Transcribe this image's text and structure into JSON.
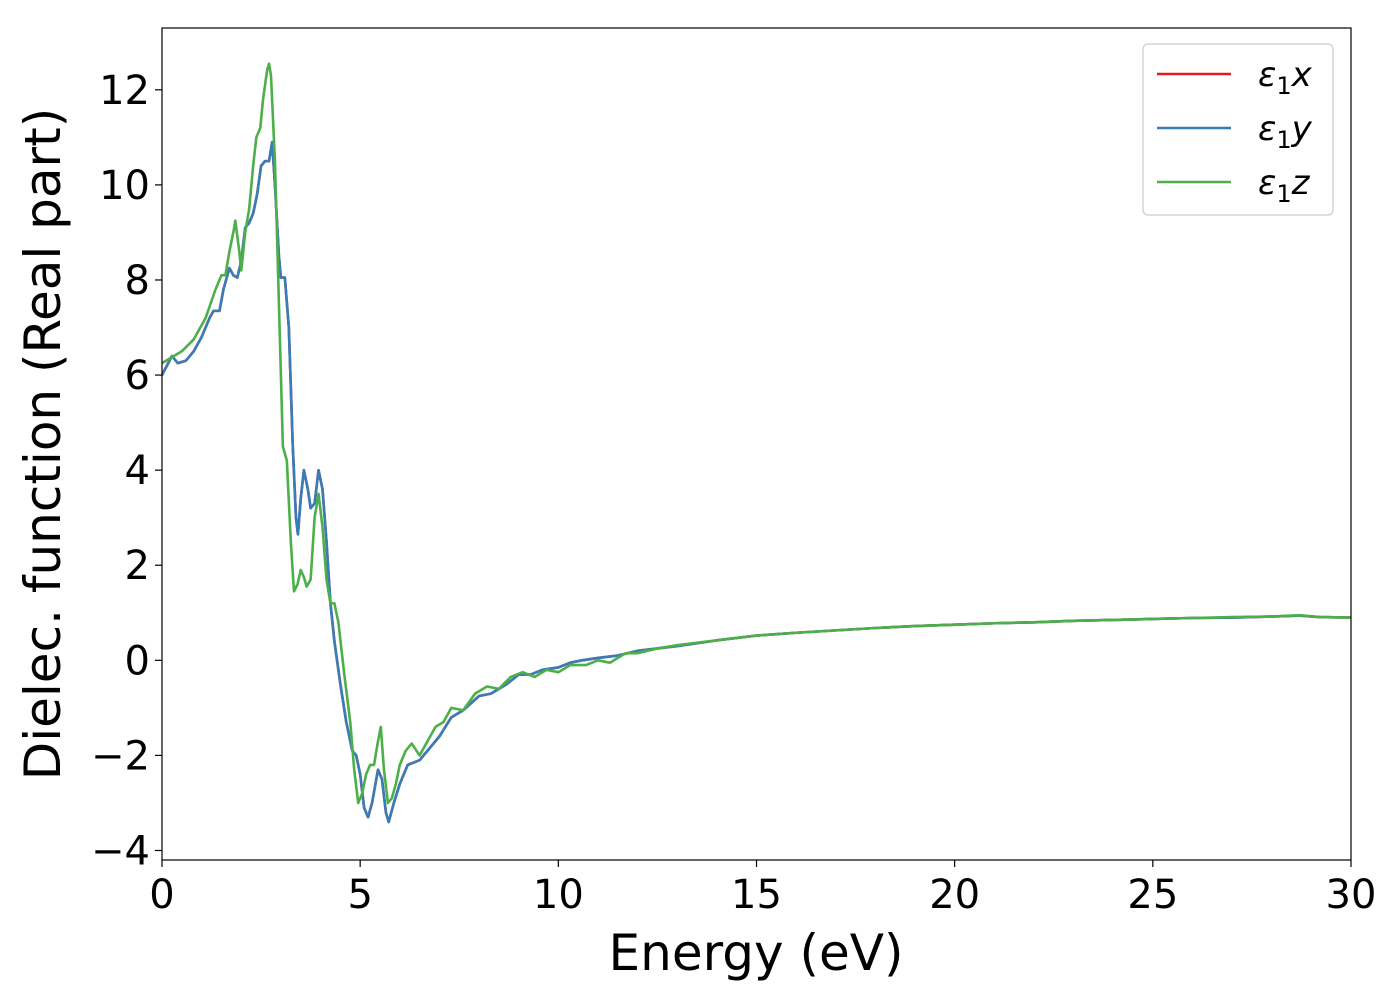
{
  "chart_data": {
    "type": "line",
    "title": "",
    "xlabel": "Energy (eV)",
    "ylabel": "Dielec. function (Real part)",
    "xlim": [
      0,
      30
    ],
    "ylim": [
      -4.2,
      13.3
    ],
    "xticks": [
      0,
      5,
      10,
      15,
      20,
      25,
      30
    ],
    "yticks": [
      -4,
      -2,
      0,
      2,
      4,
      6,
      8,
      10,
      12
    ],
    "xtick_labels": [
      "0",
      "5",
      "10",
      "15",
      "20",
      "25",
      "30"
    ],
    "ytick_labels": [
      "−4",
      "−2",
      "0",
      "2",
      "4",
      "6",
      "8",
      "10",
      "12"
    ],
    "grid": false,
    "legend_position": "top-right",
    "series": [
      {
        "name": "ε1x",
        "legend": {
          "base": "ε",
          "sub": "1",
          "var": "x"
        },
        "color": "#e41a1c",
        "points": [
          [
            0,
            6.0
          ],
          [
            0.25,
            6.4
          ],
          [
            0.4,
            6.25
          ],
          [
            0.6,
            6.3
          ],
          [
            0.8,
            6.5
          ],
          [
            1.0,
            6.8
          ],
          [
            1.2,
            7.2
          ],
          [
            1.3,
            7.35
          ],
          [
            1.45,
            7.35
          ],
          [
            1.55,
            7.8
          ],
          [
            1.7,
            8.25
          ],
          [
            1.8,
            8.1
          ],
          [
            1.9,
            8.05
          ],
          [
            2.0,
            8.4
          ],
          [
            2.1,
            9.1
          ],
          [
            2.2,
            9.2
          ],
          [
            2.3,
            9.4
          ],
          [
            2.4,
            9.8
          ],
          [
            2.5,
            10.4
          ],
          [
            2.6,
            10.5
          ],
          [
            2.7,
            10.5
          ],
          [
            2.78,
            10.9
          ],
          [
            2.85,
            10.0
          ],
          [
            2.95,
            8.5
          ],
          [
            3.0,
            8.05
          ],
          [
            3.1,
            8.05
          ],
          [
            3.2,
            7.0
          ],
          [
            3.3,
            4.5
          ],
          [
            3.38,
            3.0
          ],
          [
            3.43,
            2.65
          ],
          [
            3.5,
            3.4
          ],
          [
            3.58,
            4.0
          ],
          [
            3.68,
            3.6
          ],
          [
            3.75,
            3.2
          ],
          [
            3.85,
            3.3
          ],
          [
            3.95,
            4.0
          ],
          [
            4.05,
            3.6
          ],
          [
            4.15,
            2.5
          ],
          [
            4.25,
            1.2
          ],
          [
            4.35,
            0.4
          ],
          [
            4.5,
            -0.5
          ],
          [
            4.65,
            -1.3
          ],
          [
            4.8,
            -1.9
          ],
          [
            4.9,
            -2.0
          ],
          [
            5.0,
            -2.4
          ],
          [
            5.1,
            -3.1
          ],
          [
            5.2,
            -3.3
          ],
          [
            5.3,
            -3.0
          ],
          [
            5.45,
            -2.3
          ],
          [
            5.55,
            -2.5
          ],
          [
            5.65,
            -3.2
          ],
          [
            5.72,
            -3.4
          ],
          [
            5.85,
            -3.0
          ],
          [
            6.0,
            -2.6
          ],
          [
            6.2,
            -2.2
          ],
          [
            6.5,
            -2.1
          ],
          [
            7.0,
            -1.6
          ],
          [
            7.3,
            -1.2
          ],
          [
            7.6,
            -1.05
          ],
          [
            8.0,
            -0.75
          ],
          [
            8.3,
            -0.7
          ],
          [
            8.7,
            -0.5
          ],
          [
            9.0,
            -0.3
          ],
          [
            9.3,
            -0.3
          ],
          [
            9.6,
            -0.2
          ],
          [
            10.0,
            -0.15
          ],
          [
            10.3,
            -0.05
          ],
          [
            10.6,
            0.0
          ],
          [
            11.0,
            0.05
          ],
          [
            11.5,
            0.1
          ],
          [
            12.0,
            0.2
          ],
          [
            13.0,
            0.3
          ],
          [
            14.0,
            0.42
          ],
          [
            15.0,
            0.52
          ],
          [
            16.0,
            0.58
          ],
          [
            17.0,
            0.63
          ],
          [
            18.0,
            0.68
          ],
          [
            19.0,
            0.72
          ],
          [
            20.0,
            0.75
          ],
          [
            21.0,
            0.78
          ],
          [
            22.0,
            0.8
          ],
          [
            23.0,
            0.83
          ],
          [
            24.0,
            0.85
          ],
          [
            25.0,
            0.87
          ],
          [
            26.0,
            0.89
          ],
          [
            27.0,
            0.9
          ],
          [
            28.0,
            0.92
          ],
          [
            28.7,
            0.94
          ],
          [
            29.2,
            0.91
          ],
          [
            30.0,
            0.9
          ]
        ]
      },
      {
        "name": "ε1y",
        "legend": {
          "base": "ε",
          "sub": "1",
          "var": "y"
        },
        "color": "#377eb8",
        "points": [
          [
            0,
            6.0
          ],
          [
            0.25,
            6.4
          ],
          [
            0.4,
            6.25
          ],
          [
            0.6,
            6.3
          ],
          [
            0.8,
            6.5
          ],
          [
            1.0,
            6.8
          ],
          [
            1.2,
            7.2
          ],
          [
            1.3,
            7.35
          ],
          [
            1.45,
            7.35
          ],
          [
            1.55,
            7.8
          ],
          [
            1.7,
            8.25
          ],
          [
            1.8,
            8.1
          ],
          [
            1.9,
            8.05
          ],
          [
            2.0,
            8.4
          ],
          [
            2.1,
            9.1
          ],
          [
            2.2,
            9.2
          ],
          [
            2.3,
            9.4
          ],
          [
            2.4,
            9.8
          ],
          [
            2.5,
            10.4
          ],
          [
            2.6,
            10.5
          ],
          [
            2.7,
            10.5
          ],
          [
            2.78,
            10.9
          ],
          [
            2.85,
            10.0
          ],
          [
            2.95,
            8.5
          ],
          [
            3.0,
            8.05
          ],
          [
            3.1,
            8.05
          ],
          [
            3.2,
            7.0
          ],
          [
            3.3,
            4.5
          ],
          [
            3.38,
            3.0
          ],
          [
            3.43,
            2.65
          ],
          [
            3.5,
            3.4
          ],
          [
            3.58,
            4.0
          ],
          [
            3.68,
            3.6
          ],
          [
            3.75,
            3.2
          ],
          [
            3.85,
            3.3
          ],
          [
            3.95,
            4.0
          ],
          [
            4.05,
            3.6
          ],
          [
            4.15,
            2.5
          ],
          [
            4.25,
            1.2
          ],
          [
            4.35,
            0.4
          ],
          [
            4.5,
            -0.5
          ],
          [
            4.65,
            -1.3
          ],
          [
            4.8,
            -1.9
          ],
          [
            4.9,
            -2.0
          ],
          [
            5.0,
            -2.4
          ],
          [
            5.1,
            -3.1
          ],
          [
            5.2,
            -3.3
          ],
          [
            5.3,
            -3.0
          ],
          [
            5.45,
            -2.3
          ],
          [
            5.55,
            -2.5
          ],
          [
            5.65,
            -3.2
          ],
          [
            5.72,
            -3.4
          ],
          [
            5.85,
            -3.0
          ],
          [
            6.0,
            -2.6
          ],
          [
            6.2,
            -2.2
          ],
          [
            6.5,
            -2.1
          ],
          [
            7.0,
            -1.6
          ],
          [
            7.3,
            -1.2
          ],
          [
            7.6,
            -1.05
          ],
          [
            8.0,
            -0.75
          ],
          [
            8.3,
            -0.7
          ],
          [
            8.7,
            -0.5
          ],
          [
            9.0,
            -0.3
          ],
          [
            9.3,
            -0.3
          ],
          [
            9.6,
            -0.2
          ],
          [
            10.0,
            -0.15
          ],
          [
            10.3,
            -0.05
          ],
          [
            10.6,
            0.0
          ],
          [
            11.0,
            0.05
          ],
          [
            11.5,
            0.1
          ],
          [
            12.0,
            0.2
          ],
          [
            13.0,
            0.3
          ],
          [
            14.0,
            0.42
          ],
          [
            15.0,
            0.52
          ],
          [
            16.0,
            0.58
          ],
          [
            17.0,
            0.63
          ],
          [
            18.0,
            0.68
          ],
          [
            19.0,
            0.72
          ],
          [
            20.0,
            0.75
          ],
          [
            21.0,
            0.78
          ],
          [
            22.0,
            0.8
          ],
          [
            23.0,
            0.83
          ],
          [
            24.0,
            0.85
          ],
          [
            25.0,
            0.87
          ],
          [
            26.0,
            0.89
          ],
          [
            27.0,
            0.9
          ],
          [
            28.0,
            0.92
          ],
          [
            28.7,
            0.94
          ],
          [
            29.2,
            0.91
          ],
          [
            30.0,
            0.9
          ]
        ]
      },
      {
        "name": "ε1z",
        "legend": {
          "base": "ε",
          "sub": "1",
          "var": "z"
        },
        "color": "#4daf4a",
        "points": [
          [
            0,
            6.25
          ],
          [
            0.2,
            6.35
          ],
          [
            0.5,
            6.5
          ],
          [
            0.8,
            6.75
          ],
          [
            1.1,
            7.2
          ],
          [
            1.35,
            7.8
          ],
          [
            1.5,
            8.1
          ],
          [
            1.6,
            8.1
          ],
          [
            1.7,
            8.6
          ],
          [
            1.8,
            9.0
          ],
          [
            1.85,
            9.25
          ],
          [
            1.95,
            8.6
          ],
          [
            2.0,
            8.2
          ],
          [
            2.1,
            9.0
          ],
          [
            2.2,
            9.5
          ],
          [
            2.3,
            10.4
          ],
          [
            2.38,
            11.0
          ],
          [
            2.48,
            11.2
          ],
          [
            2.55,
            11.8
          ],
          [
            2.65,
            12.4
          ],
          [
            2.7,
            12.55
          ],
          [
            2.75,
            12.3
          ],
          [
            2.85,
            10.5
          ],
          [
            2.95,
            7.5
          ],
          [
            3.05,
            4.5
          ],
          [
            3.15,
            4.2
          ],
          [
            3.25,
            2.5
          ],
          [
            3.33,
            1.45
          ],
          [
            3.42,
            1.6
          ],
          [
            3.5,
            1.9
          ],
          [
            3.58,
            1.75
          ],
          [
            3.65,
            1.55
          ],
          [
            3.75,
            1.7
          ],
          [
            3.85,
            3.0
          ],
          [
            3.95,
            3.5
          ],
          [
            4.05,
            2.8
          ],
          [
            4.15,
            1.7
          ],
          [
            4.25,
            1.2
          ],
          [
            4.35,
            1.2
          ],
          [
            4.45,
            0.8
          ],
          [
            4.6,
            -0.3
          ],
          [
            4.75,
            -1.3
          ],
          [
            4.85,
            -2.3
          ],
          [
            4.95,
            -3.0
          ],
          [
            5.05,
            -2.8
          ],
          [
            5.15,
            -2.4
          ],
          [
            5.25,
            -2.2
          ],
          [
            5.35,
            -2.2
          ],
          [
            5.45,
            -1.7
          ],
          [
            5.52,
            -1.4
          ],
          [
            5.6,
            -2.3
          ],
          [
            5.7,
            -3.0
          ],
          [
            5.8,
            -2.9
          ],
          [
            5.9,
            -2.6
          ],
          [
            6.0,
            -2.2
          ],
          [
            6.15,
            -1.9
          ],
          [
            6.3,
            -1.75
          ],
          [
            6.5,
            -2.0
          ],
          [
            6.7,
            -1.7
          ],
          [
            6.9,
            -1.4
          ],
          [
            7.1,
            -1.3
          ],
          [
            7.3,
            -1.0
          ],
          [
            7.6,
            -1.05
          ],
          [
            7.9,
            -0.7
          ],
          [
            8.2,
            -0.55
          ],
          [
            8.5,
            -0.6
          ],
          [
            8.8,
            -0.35
          ],
          [
            9.1,
            -0.25
          ],
          [
            9.4,
            -0.35
          ],
          [
            9.7,
            -0.2
          ],
          [
            10.0,
            -0.25
          ],
          [
            10.3,
            -0.1
          ],
          [
            10.7,
            -0.1
          ],
          [
            11.0,
            0.0
          ],
          [
            11.3,
            -0.05
          ],
          [
            11.7,
            0.15
          ],
          [
            12.0,
            0.15
          ],
          [
            12.5,
            0.25
          ],
          [
            13.0,
            0.32
          ],
          [
            14.0,
            0.42
          ],
          [
            15.0,
            0.52
          ],
          [
            16.0,
            0.58
          ],
          [
            17.0,
            0.63
          ],
          [
            18.0,
            0.68
          ],
          [
            19.0,
            0.72
          ],
          [
            20.0,
            0.75
          ],
          [
            21.0,
            0.78
          ],
          [
            22.0,
            0.8
          ],
          [
            23.0,
            0.83
          ],
          [
            24.0,
            0.85
          ],
          [
            25.0,
            0.87
          ],
          [
            26.0,
            0.89
          ],
          [
            27.0,
            0.91
          ],
          [
            28.0,
            0.92
          ],
          [
            28.7,
            0.95
          ],
          [
            29.2,
            0.91
          ],
          [
            30.0,
            0.9
          ]
        ]
      }
    ]
  }
}
